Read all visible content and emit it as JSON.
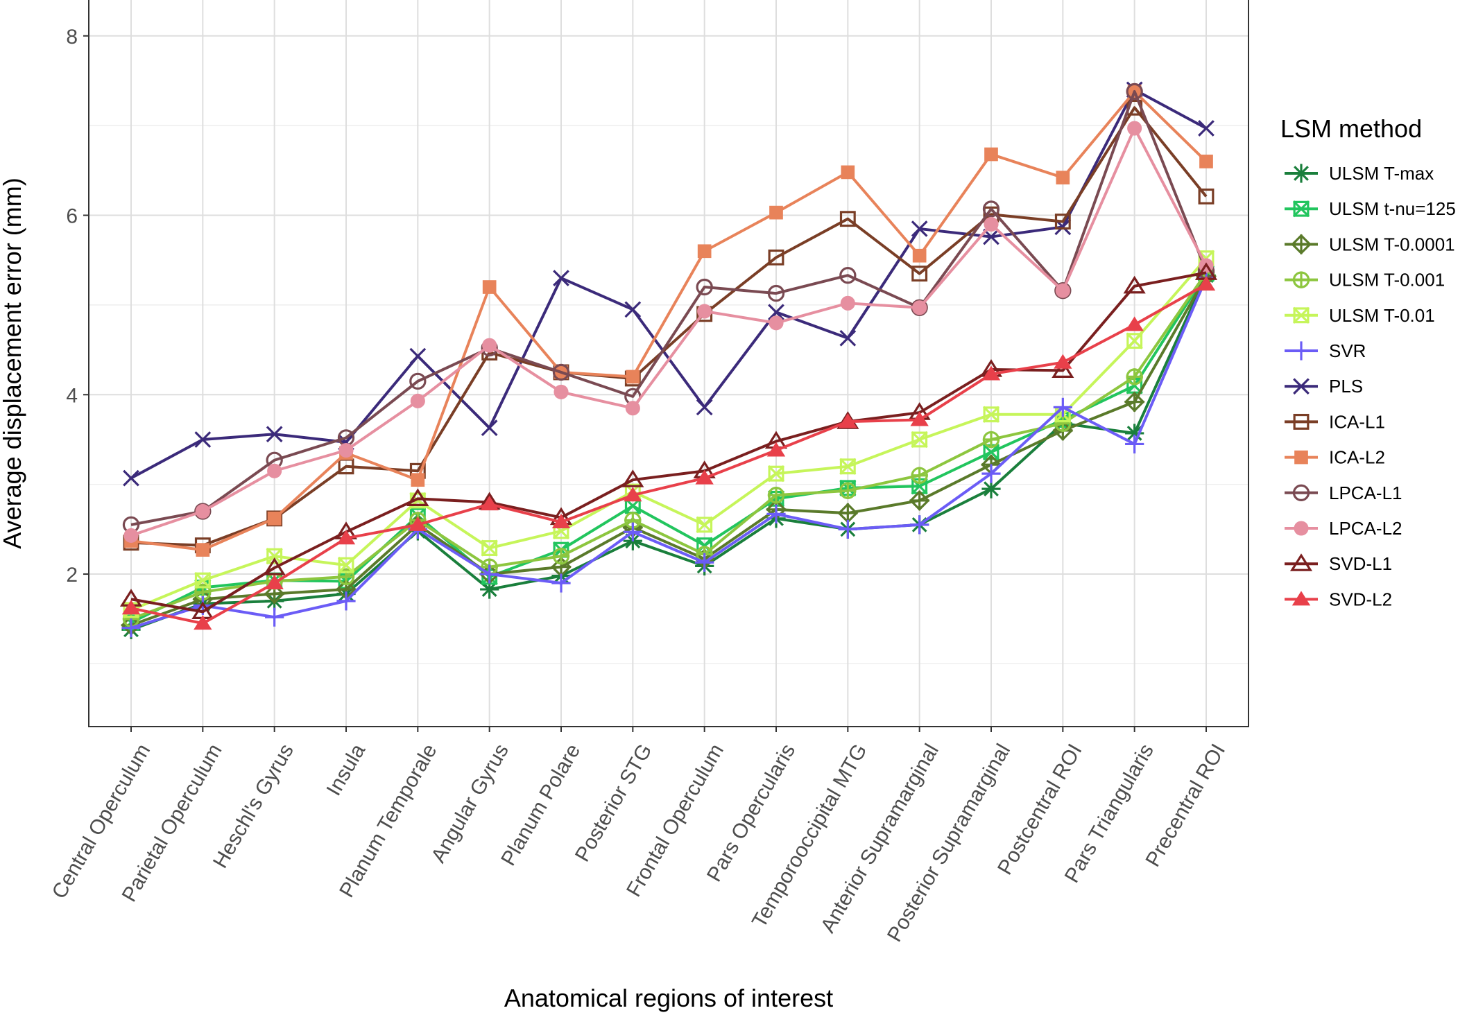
{
  "chart_data": {
    "type": "line",
    "title": "",
    "xlabel": "Anatomical regions of interest",
    "ylabel": "Average displacement error (mm)",
    "ylim": [
      0.3,
      8.4
    ],
    "yticks": [
      2,
      4,
      6,
      8
    ],
    "grid": true,
    "legend_title": "LSM method",
    "legend_position": "right",
    "categories": [
      "Central Operculum",
      "Parietal Operculum",
      "Heschl's Gyrus",
      "Insula",
      "Planum Temporale",
      "Angular Gyrus",
      "Planum Polare",
      "Posterior STG",
      "Frontal Operculum",
      "Pars Opercularis",
      "Temporooccipital MTG",
      "Anterior Supramarginal",
      "Posterior Supramarginal",
      "Postcentral ROI",
      "Pars Triangularis",
      "Precentral ROI"
    ],
    "series": [
      {
        "name": "ULSM T-max",
        "color": "#1a7f3c",
        "marker": "asterisk",
        "values": [
          1.38,
          1.67,
          1.7,
          1.78,
          2.48,
          1.83,
          1.98,
          2.37,
          2.09,
          2.62,
          2.5,
          2.55,
          2.95,
          3.68,
          3.57,
          5.33
        ]
      },
      {
        "name": "ULSM t-nu=125",
        "color": "#22c55e",
        "marker": "square-cross",
        "values": [
          1.46,
          1.85,
          1.93,
          1.92,
          2.65,
          1.97,
          2.27,
          2.76,
          2.32,
          2.84,
          2.96,
          2.98,
          3.36,
          3.72,
          4.1,
          5.35
        ]
      },
      {
        "name": "ULSM T-0.0001",
        "color": "#5a7a2a",
        "marker": "diamond-plus",
        "values": [
          1.43,
          1.72,
          1.78,
          1.83,
          2.55,
          2.0,
          2.08,
          2.52,
          2.17,
          2.72,
          2.68,
          2.82,
          3.22,
          3.6,
          3.92,
          5.32
        ]
      },
      {
        "name": "ULSM T-0.001",
        "color": "#8dc63f",
        "marker": "circle-plus",
        "values": [
          1.5,
          1.8,
          1.92,
          1.97,
          2.6,
          2.08,
          2.2,
          2.6,
          2.22,
          2.88,
          2.93,
          3.1,
          3.5,
          3.68,
          4.2,
          5.36
        ]
      },
      {
        "name": "ULSM T-0.01",
        "color": "#c6f55a",
        "marker": "square-x",
        "values": [
          1.6,
          1.93,
          2.2,
          2.1,
          2.82,
          2.29,
          2.48,
          2.92,
          2.55,
          3.12,
          3.2,
          3.5,
          3.78,
          3.78,
          4.6,
          5.52
        ]
      },
      {
        "name": "SVR",
        "color": "#6b5cf6",
        "marker": "plus",
        "values": [
          1.4,
          1.65,
          1.52,
          1.7,
          2.5,
          2.0,
          1.9,
          2.47,
          2.13,
          2.67,
          2.5,
          2.55,
          3.12,
          3.86,
          3.45,
          5.3
        ]
      },
      {
        "name": "PLS",
        "color": "#3b2a7a",
        "marker": "x",
        "values": [
          3.07,
          3.5,
          3.56,
          3.47,
          4.43,
          3.63,
          5.3,
          4.95,
          3.86,
          4.92,
          4.63,
          5.85,
          5.76,
          5.87,
          7.4,
          6.97
        ]
      },
      {
        "name": "ICA-L1",
        "color": "#7a3e26",
        "marker": "square-open",
        "values": [
          2.35,
          2.32,
          2.62,
          3.2,
          3.15,
          4.47,
          4.25,
          4.18,
          4.9,
          5.53,
          5.96,
          5.35,
          6.01,
          5.93,
          7.2,
          6.21
        ]
      },
      {
        "name": "ICA-L2",
        "color": "#e8835a",
        "marker": "square-filled",
        "values": [
          2.37,
          2.27,
          2.62,
          3.35,
          3.05,
          5.2,
          4.25,
          4.2,
          5.6,
          6.03,
          6.48,
          5.55,
          6.68,
          6.42,
          7.38,
          6.6
        ]
      },
      {
        "name": "LPCA-L1",
        "color": "#7a4a52",
        "marker": "circle-open",
        "values": [
          2.55,
          2.7,
          3.27,
          3.52,
          4.15,
          4.52,
          4.25,
          3.98,
          5.2,
          5.13,
          5.33,
          4.97,
          6.07,
          5.16,
          7.38,
          5.38
        ]
      },
      {
        "name": "LPCA-L2",
        "color": "#e68fa0",
        "marker": "circle-filled",
        "values": [
          2.43,
          2.7,
          3.15,
          3.38,
          3.93,
          4.55,
          4.03,
          3.85,
          4.93,
          4.8,
          5.02,
          4.97,
          5.9,
          5.16,
          6.97,
          5.44
        ]
      },
      {
        "name": "SVD-L1",
        "color": "#7a1f1f",
        "marker": "triangle-open",
        "values": [
          1.72,
          1.58,
          2.07,
          2.47,
          2.84,
          2.8,
          2.63,
          3.05,
          3.15,
          3.48,
          3.7,
          3.8,
          4.28,
          4.27,
          5.21,
          5.36
        ]
      },
      {
        "name": "SVD-L2",
        "color": "#e8404a",
        "marker": "triangle-filled",
        "values": [
          1.62,
          1.45,
          1.9,
          2.4,
          2.55,
          2.78,
          2.58,
          2.88,
          3.07,
          3.38,
          3.7,
          3.72,
          4.23,
          4.36,
          4.78,
          5.23
        ]
      }
    ]
  }
}
